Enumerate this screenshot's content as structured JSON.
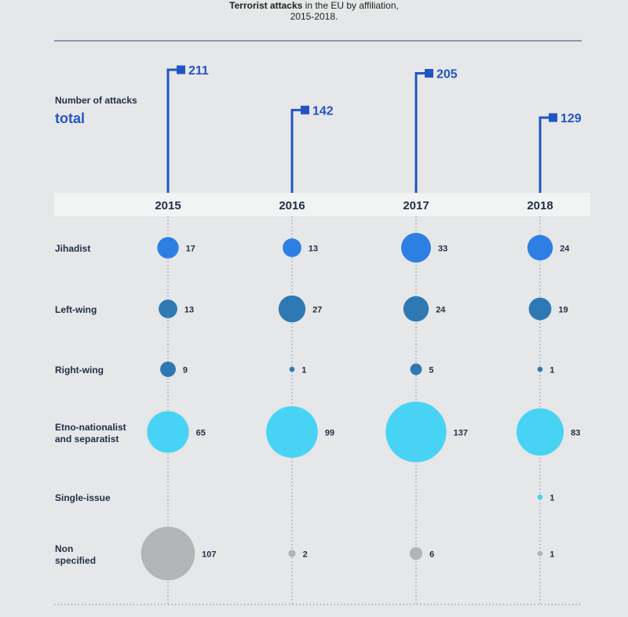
{
  "title": {
    "bold": "Terrorist attacks",
    "rest": " in the EU by affiliation,",
    "line2": "2015-2018."
  },
  "colors": {
    "accent": "#2155c4",
    "jihadist": "#2d7fe3",
    "left_right": "#2e79b4",
    "separatist": "#48d3f4",
    "single_issue": "#48d3f4",
    "non_specified": "#b3b4b6",
    "label": "#223047",
    "band": "#f2f3f3"
  },
  "chart_data": {
    "type": "scatter",
    "title": "Terrorist attacks in the EU by affiliation, 2015-2018.",
    "total_label": {
      "line1": "Number of attacks",
      "line2": "total"
    },
    "years": [
      "2015",
      "2016",
      "2017",
      "2018"
    ],
    "totals": [
      211,
      142,
      205,
      129
    ],
    "categories": [
      {
        "label": [
          "Jihadist"
        ],
        "key": "jihadist",
        "values": [
          17,
          13,
          33,
          24
        ]
      },
      {
        "label": [
          "Left-wing"
        ],
        "key": "left_right",
        "values": [
          13,
          27,
          24,
          19
        ]
      },
      {
        "label": [
          "Right-wing"
        ],
        "key": "left_right",
        "values": [
          9,
          1,
          5,
          1
        ]
      },
      {
        "label": [
          "Etno-nationalist",
          "and separatist"
        ],
        "key": "separatist",
        "values": [
          65,
          99,
          137,
          83
        ]
      },
      {
        "label": [
          "Single-issue"
        ],
        "key": "single_issue",
        "values": [
          null,
          null,
          null,
          1
        ]
      },
      {
        "label": [
          "Non",
          "specified"
        ],
        "key": "non_specified",
        "values": [
          107,
          2,
          6,
          1
        ]
      }
    ]
  }
}
